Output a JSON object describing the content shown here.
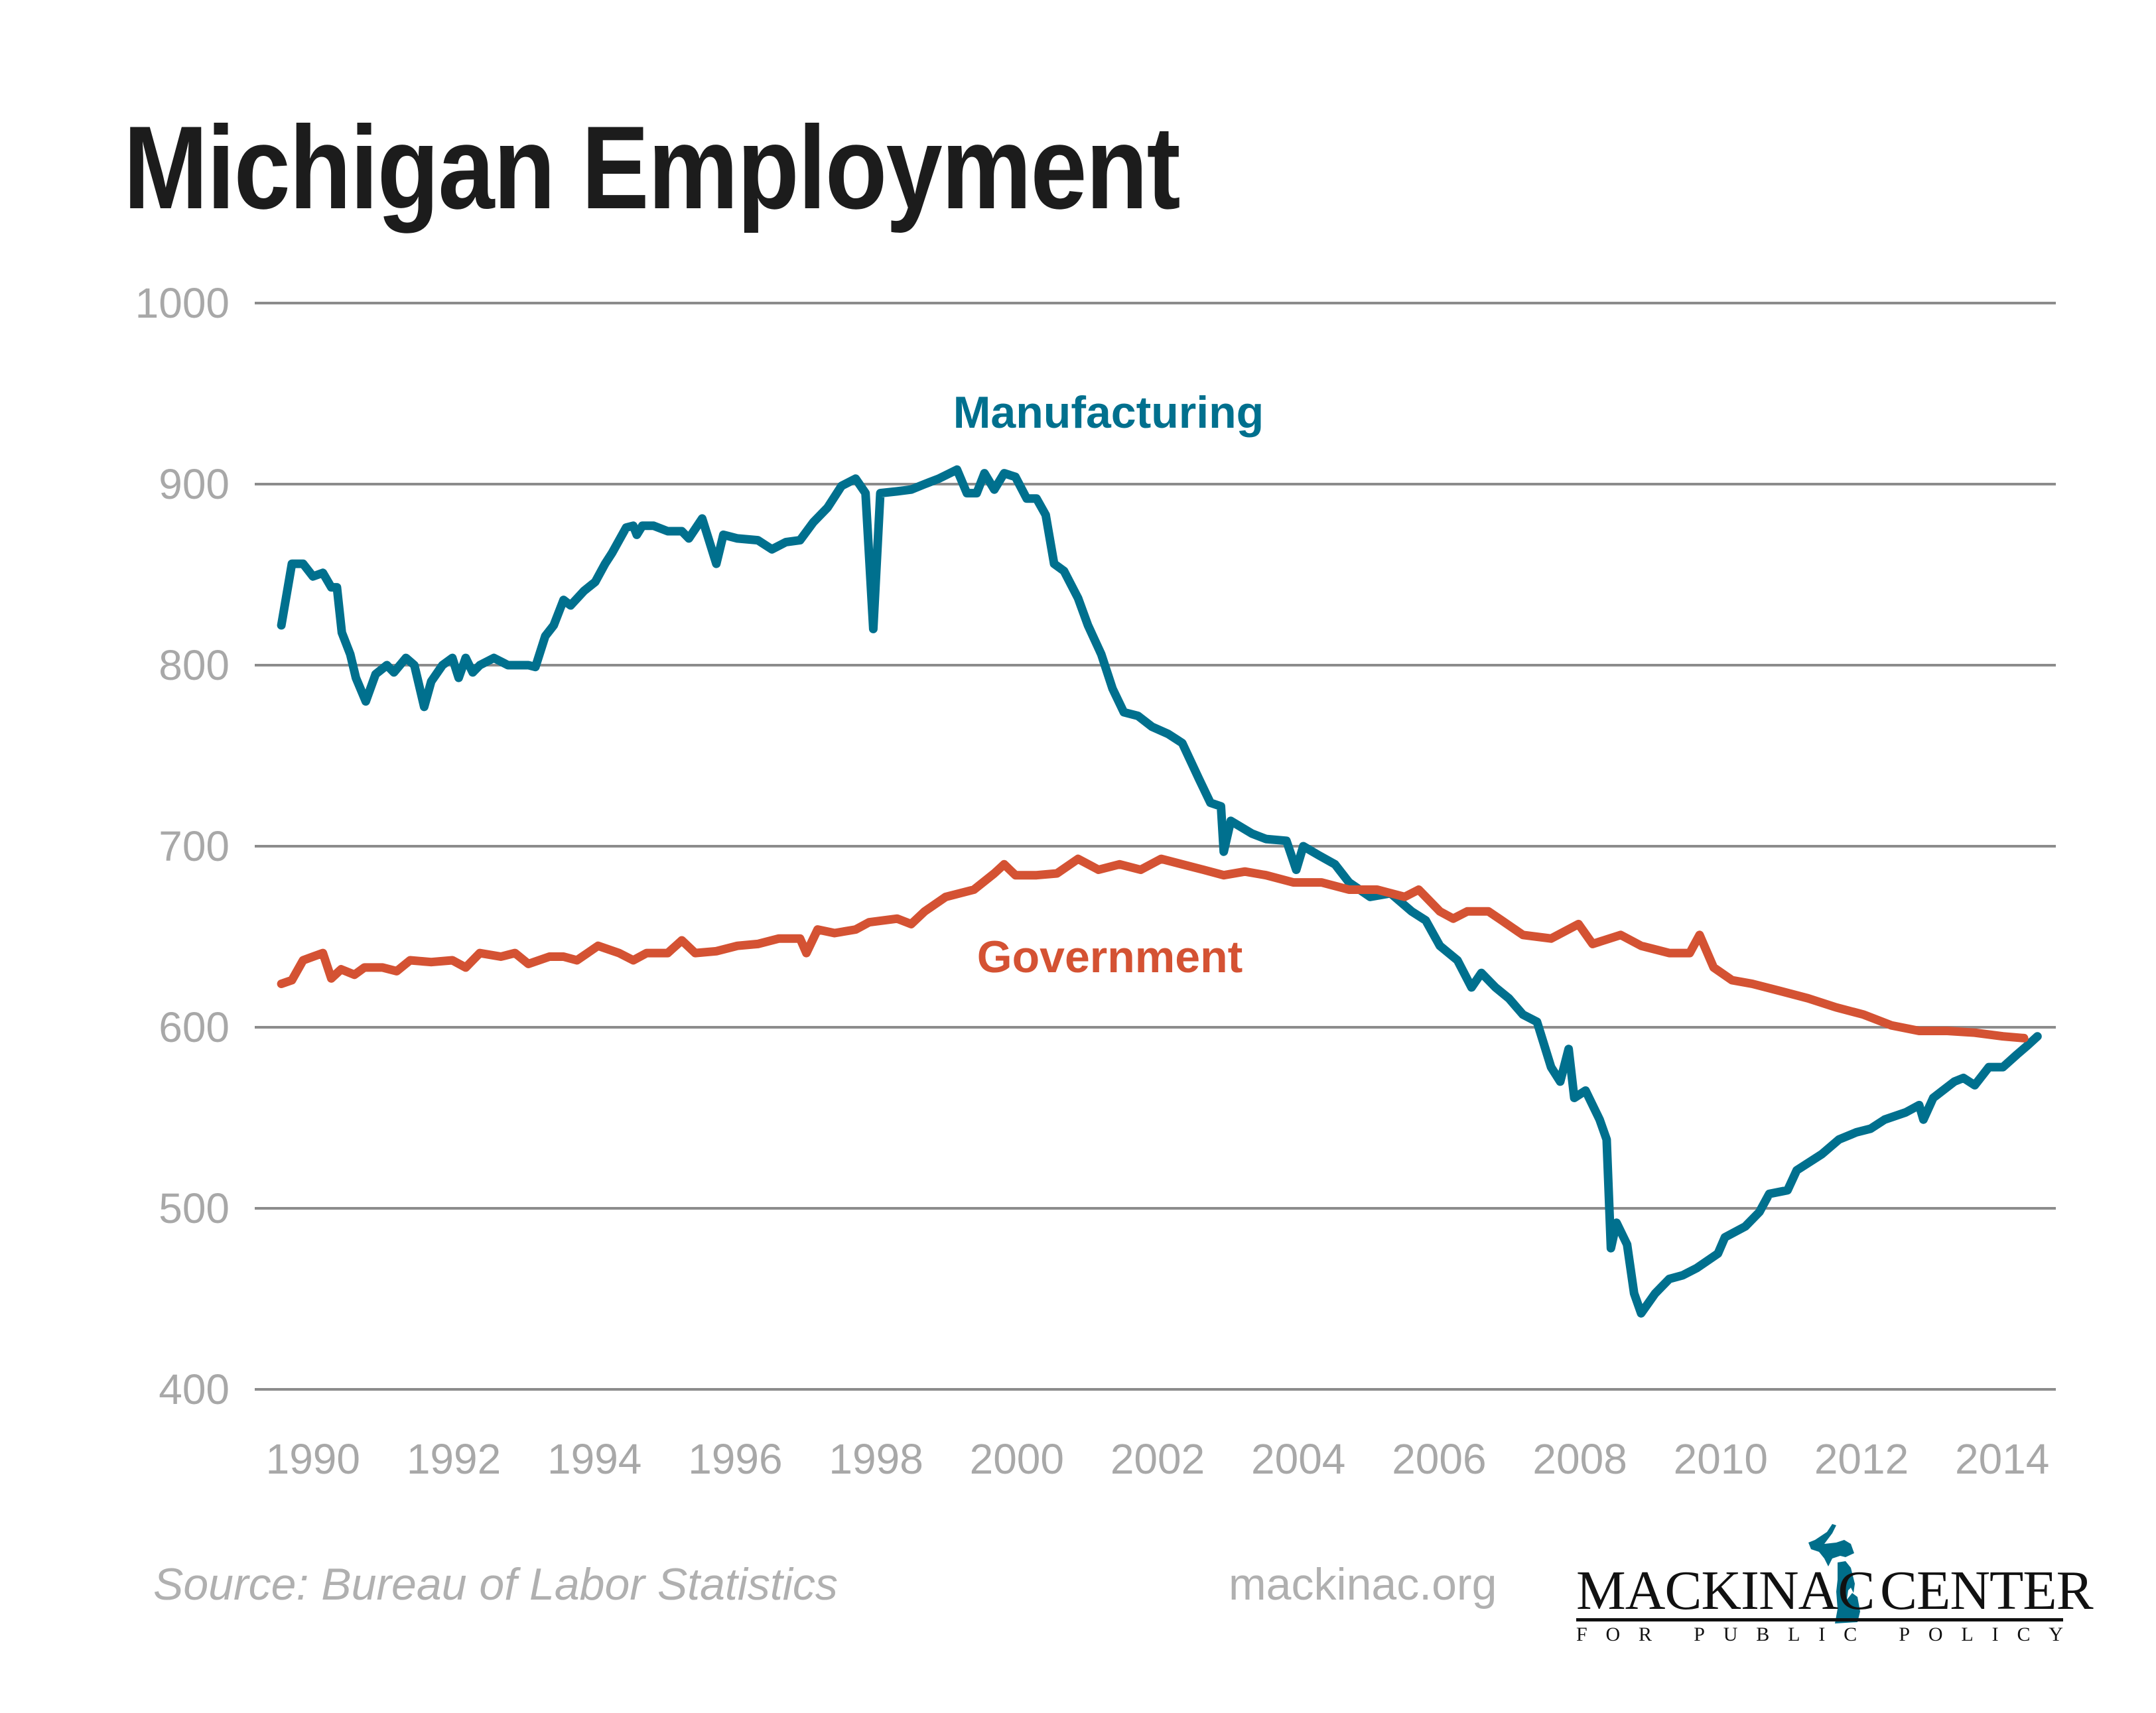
{
  "chart_data": {
    "type": "line",
    "title": "Michigan Employment",
    "xlabel": "",
    "ylabel": "",
    "xlim": [
      1989.5,
      2014.6
    ],
    "ylim": [
      400,
      1000
    ],
    "yticks": [
      1000,
      900,
      800,
      700,
      600,
      500,
      400
    ],
    "xticks": [
      1990,
      1992,
      1994,
      1996,
      1998,
      2000,
      2002,
      2004,
      2006,
      2008,
      2010,
      2012,
      2014
    ],
    "grid": "horizontal",
    "series": [
      {
        "name": "Manufacturing",
        "color": "#00708e",
        "x": [
          1989.55,
          1989.7,
          1989.86,
          1990.0,
          1990.14,
          1990.26,
          1990.34,
          1990.41,
          1990.53,
          1990.61,
          1990.75,
          1990.89,
          1991.05,
          1991.15,
          1991.32,
          1991.44,
          1991.58,
          1991.68,
          1991.84,
          1991.98,
          1992.07,
          1992.17,
          1992.27,
          1992.37,
          1992.57,
          1992.77,
          1993.06,
          1993.16,
          1993.3,
          1993.42,
          1993.56,
          1993.66,
          1993.85,
          1994.01,
          1994.15,
          1994.25,
          1994.45,
          1994.55,
          1994.6,
          1994.68,
          1994.84,
          1995.04,
          1995.24,
          1995.34,
          1995.53,
          1995.73,
          1995.83,
          1996.03,
          1996.32,
          1996.52,
          1996.72,
          1996.92,
          1997.11,
          1997.31,
          1997.51,
          1997.71,
          1997.85,
          1997.96,
          1998.06,
          1998.3,
          1998.5,
          1998.69,
          1998.89,
          1999.15,
          1999.29,
          1999.43,
          1999.54,
          1999.68,
          1999.82,
          1999.98,
          2000.14,
          2000.28,
          2000.41,
          2000.53,
          2000.67,
          2000.87,
          2001.01,
          2001.2,
          2001.36,
          2001.52,
          2001.72,
          2001.92,
          2002.15,
          2002.35,
          2002.59,
          2002.75,
          2002.9,
          2002.94,
          2003.04,
          2003.34,
          2003.54,
          2003.83,
          2003.97,
          2004.07,
          2004.29,
          2004.52,
          2004.72,
          2005.02,
          2005.31,
          2005.61,
          2005.81,
          2006.01,
          2006.26,
          2006.46,
          2006.6,
          2006.8,
          2006.99,
          2007.19,
          2007.39,
          2007.59,
          2007.72,
          2007.84,
          2007.92,
          2008.08,
          2008.28,
          2008.38,
          2008.44,
          2008.52,
          2008.67,
          2008.77,
          2008.87,
          2009.07,
          2009.27,
          2009.46,
          2009.66,
          2009.96,
          2010.06,
          2010.35,
          2010.55,
          2010.69,
          2010.95,
          2011.08,
          2011.44,
          2011.68,
          2011.93,
          2012.13,
          2012.33,
          2012.63,
          2012.82,
          2012.88,
          2013.02,
          2013.32,
          2013.45,
          2013.61,
          2013.81,
          2014.01,
          2014.21,
          2014.36,
          2014.5
        ],
        "y": [
          822,
          856,
          856,
          849,
          851,
          843,
          843,
          818,
          806,
          793,
          780,
          795,
          800,
          796,
          804,
          800,
          777,
          791,
          800,
          804,
          793,
          804,
          796,
          800,
          804,
          800,
          800,
          799,
          816,
          822,
          836,
          833,
          841,
          846,
          856,
          862,
          876,
          877,
          872,
          877,
          877,
          874,
          874,
          870,
          881,
          856,
          872,
          870,
          869,
          864,
          868,
          869,
          879,
          887,
          899,
          903,
          895,
          820,
          895,
          896,
          897,
          900,
          903,
          908,
          895,
          895,
          906,
          897,
          906,
          904,
          892,
          892,
          883,
          856,
          852,
          837,
          822,
          806,
          787,
          774,
          772,
          766,
          762,
          757,
          737,
          724,
          722,
          697,
          714,
          707,
          704,
          703,
          687,
          700,
          695,
          690,
          680,
          672,
          674,
          664,
          659,
          645,
          637,
          622,
          630,
          622,
          616,
          607,
          603,
          578,
          570,
          588,
          561,
          565,
          549,
          538,
          478,
          492,
          480,
          453,
          442,
          453,
          461,
          463,
          467,
          475,
          484,
          490,
          498,
          508,
          510,
          521,
          530,
          538,
          542,
          544,
          549,
          553,
          557,
          549,
          561,
          570,
          572,
          568,
          578,
          578,
          585,
          590,
          595
        ]
      },
      {
        "name": "Government",
        "color": "#d45233",
        "x": [
          1989.55,
          1989.7,
          1989.86,
          1990.0,
          1990.14,
          1990.26,
          1990.4,
          1990.59,
          1990.73,
          1990.99,
          1991.19,
          1991.38,
          1991.68,
          1991.98,
          1992.17,
          1992.37,
          1992.67,
          1992.87,
          1993.06,
          1993.36,
          1993.56,
          1993.75,
          1994.05,
          1994.35,
          1994.55,
          1994.74,
          1995.04,
          1995.24,
          1995.43,
          1995.73,
          1996.03,
          1996.32,
          1996.62,
          1996.92,
          1997.01,
          1997.17,
          1997.41,
          1997.71,
          1997.9,
          1998.1,
          1998.3,
          1998.5,
          1998.69,
          1998.99,
          1999.39,
          1999.68,
          1999.82,
          1999.98,
          2000.28,
          2000.57,
          2000.87,
          2001.16,
          2001.46,
          2001.76,
          2002.05,
          2002.35,
          2002.65,
          2002.94,
          2003.24,
          2003.54,
          2003.93,
          2004.33,
          2004.72,
          2005.12,
          2005.51,
          2005.71,
          2006.01,
          2006.2,
          2006.4,
          2006.7,
          2006.89,
          2007.19,
          2007.59,
          2007.98,
          2008.18,
          2008.58,
          2008.87,
          2009.27,
          2009.56,
          2009.7,
          2009.9,
          2010.16,
          2010.45,
          2010.85,
          2011.24,
          2011.64,
          2012.03,
          2012.43,
          2012.82,
          2013.22,
          2013.61,
          2014.01,
          2014.31
        ],
        "y": [
          624,
          626,
          637,
          639,
          641,
          627,
          632,
          629,
          633,
          633,
          631,
          637,
          636,
          637,
          633,
          641,
          639,
          641,
          635,
          639,
          639,
          637,
          645,
          641,
          637,
          641,
          641,
          648,
          641,
          642,
          645,
          646,
          649,
          649,
          641,
          654,
          652,
          654,
          658,
          659,
          660,
          657,
          664,
          672,
          676,
          685,
          690,
          684,
          684,
          685,
          693,
          687,
          690,
          687,
          693,
          690,
          687,
          684,
          686,
          684,
          680,
          680,
          676,
          676,
          672,
          676,
          664,
          660,
          664,
          664,
          659,
          651,
          649,
          657,
          646,
          651,
          645,
          641,
          641,
          651,
          633,
          626,
          624,
          620,
          616,
          611,
          607,
          601,
          598,
          598,
          597,
          595,
          594
        ]
      }
    ],
    "annotations": [
      "Manufacturing",
      "Government"
    ]
  },
  "footer": {
    "source": "Source: Bureau of Labor Statistics",
    "site": "mackinac.org"
  },
  "logo": {
    "name_left": "MACKINAC",
    "name_right": "CENTER",
    "tagline": "FOR PUBLIC POLICY",
    "color": "#006e8a"
  }
}
